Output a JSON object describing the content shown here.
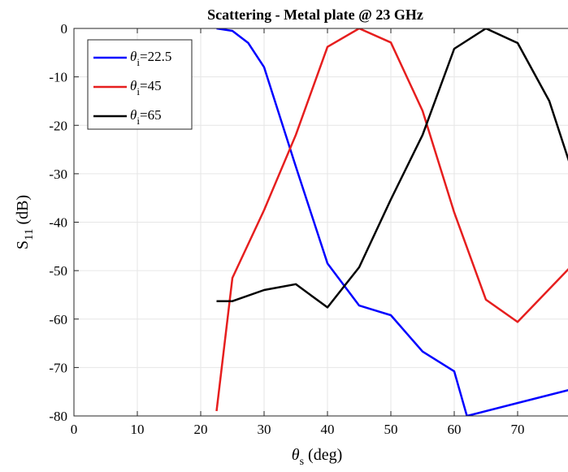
{
  "chart_data": {
    "type": "line",
    "title": "Scattering - Metal plate @ 23 GHz",
    "xlabel_symbol": "θ",
    "xlabel_sub": "s",
    "xlabel_unit": " (deg)",
    "ylabel_main": "S",
    "ylabel_sub": "11",
    "ylabel_unit": " (dB)",
    "xlim": [
      0,
      80
    ],
    "ylim": [
      -80,
      0
    ],
    "xticks": [
      0,
      10,
      20,
      30,
      40,
      50,
      60,
      70
    ],
    "yticks": [
      0,
      -10,
      -20,
      -30,
      -40,
      -50,
      -60,
      -70,
      -80
    ],
    "grid": true,
    "legend_position": "top-left",
    "series": [
      {
        "name": "θi=22.5",
        "legend_symbol": "θ",
        "legend_sub": "i",
        "legend_value": "=22.5",
        "color": "#0000ff",
        "x": [
          22.5,
          25,
          27.5,
          30,
          35,
          40,
          45,
          50,
          55,
          60,
          62,
          80
        ],
        "y": [
          0,
          -0.5,
          -3,
          -8,
          -28.5,
          -48.5,
          -57.2,
          -59.2,
          -66.7,
          -70.8,
          -80,
          -74
        ]
      },
      {
        "name": "θi=45",
        "legend_symbol": "θ",
        "legend_sub": "i",
        "legend_value": "=45",
        "color": "#e61e1e",
        "x": [
          22.5,
          25,
          30,
          35,
          40,
          45,
          50,
          55,
          60,
          65,
          70,
          80
        ],
        "y": [
          -79,
          -51.5,
          -37.5,
          -22,
          -3.8,
          0,
          -2.9,
          -17,
          -38,
          -56,
          -60.6,
          -47
        ]
      },
      {
        "name": "θi=65",
        "legend_symbol": "θ",
        "legend_sub": "i",
        "legend_value": "=65",
        "color": "#000000",
        "x": [
          22.5,
          25,
          30,
          35,
          40,
          45,
          50,
          55,
          60,
          65,
          70,
          75,
          80
        ],
        "y": [
          -56.3,
          -56.3,
          -54,
          -52.8,
          -57.6,
          -49.3,
          -35.3,
          -22,
          -4.2,
          0,
          -3,
          -15,
          -35
        ]
      }
    ]
  }
}
